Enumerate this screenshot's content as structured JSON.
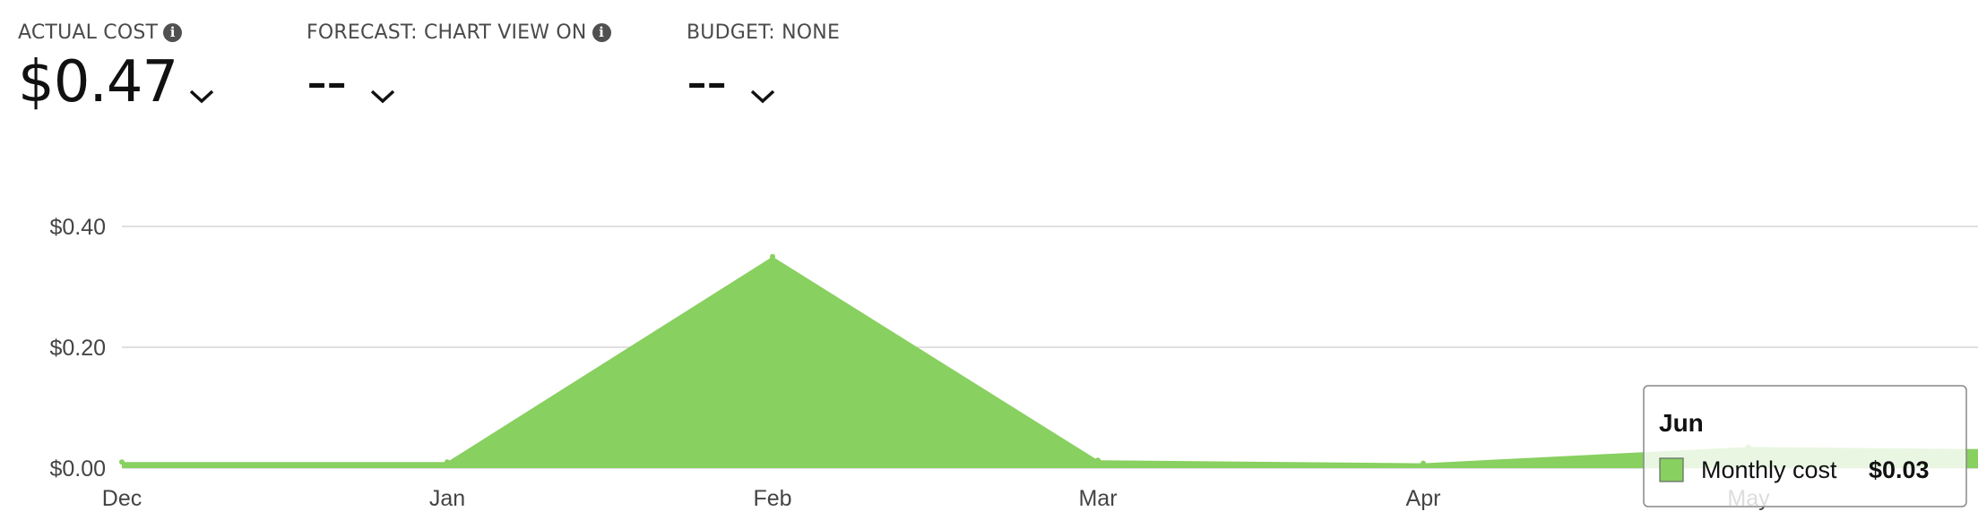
{
  "kpis": {
    "actual": {
      "label": "ACTUAL COST",
      "value": "$0.47"
    },
    "forecast": {
      "label": "FORECAST: CHART VIEW ON",
      "value": "--"
    },
    "budget": {
      "label": "BUDGET: NONE",
      "value": "--"
    }
  },
  "colors": {
    "area": "#88d060",
    "grid": "#d6d6d6",
    "axis_text": "#444444"
  },
  "chart_data": {
    "type": "area",
    "title": "",
    "xlabel": "",
    "ylabel": "",
    "categories": [
      "Dec",
      "Jan",
      "Feb",
      "Mar",
      "Apr",
      "May",
      "Jun"
    ],
    "y_tick_labels": [
      "$0.00",
      "$0.20",
      "$0.40"
    ],
    "y_ticks": [
      0,
      0.2,
      0.4
    ],
    "ylim": [
      0,
      0.4
    ],
    "grid": true,
    "series": [
      {
        "name": "Monthly cost",
        "values": [
          0.01,
          0.01,
          0.35,
          0.013,
          0.008,
          0.035,
          0.03
        ]
      }
    ],
    "tooltip": {
      "category": "Jun",
      "series": "Monthly cost",
      "value": "$0.03"
    }
  }
}
